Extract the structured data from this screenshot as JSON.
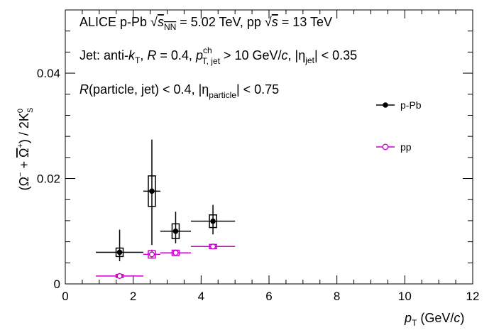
{
  "chart_data": {
    "type": "scatter",
    "xlabel": {
      "main": "p",
      "sub": "T",
      "rest": " (GeV/",
      "italic": "c",
      "close": ")"
    },
    "ylabel": "(Ω⁻ + Ω̄⁺) / 2K⁰S",
    "xlim": [
      0,
      12
    ],
    "ylim": [
      0,
      0.052
    ],
    "x_ticks": [
      0,
      2,
      4,
      6,
      8,
      10,
      12
    ],
    "x_tick_labels": [
      "0",
      "2",
      "4",
      "6",
      "8",
      "10",
      "12"
    ],
    "y_ticks": [
      0,
      0.02,
      0.04
    ],
    "y_tick_labels": [
      "0",
      "0.02",
      "0.04"
    ],
    "grid": false,
    "legend_position": "right",
    "annotations": {
      "line1": "ALICE p-Pb √sNN = 5.02 TeV, pp √s = 13 TeV",
      "line2": "Jet: anti-kT, R = 0.4, pch T, jet > 10 GeV/c, |ηjet| < 0.35",
      "line3": "R(particle, jet) < 0.4, |ηparticle| < 0.75"
    },
    "series": [
      {
        "name": "p-Pb",
        "color": "#000000",
        "marker": "filled-circle",
        "points": [
          {
            "x": 1.6,
            "y": 0.006,
            "xlo": 0.9,
            "xhi": 2.3,
            "stat": [
              0.0017,
              0.0043
            ],
            "sys": 0.0008
          },
          {
            "x": 2.55,
            "y": 0.0176,
            "xlo": 2.3,
            "xhi": 2.8,
            "stat": [
              0.0102,
              0.0098
            ],
            "sys": 0.0029
          },
          {
            "x": 3.25,
            "y": 0.01,
            "xlo": 2.8,
            "xhi": 3.7,
            "stat": [
              0.0023,
              0.0037
            ],
            "sys": 0.0014
          },
          {
            "x": 4.35,
            "y": 0.0119,
            "xlo": 3.7,
            "xhi": 5.0,
            "stat": [
              0.0025,
              0.0031
            ],
            "sys": 0.0012
          }
        ]
      },
      {
        "name": "pp",
        "color": "#cc00cc",
        "marker": "open-circle",
        "points": [
          {
            "x": 1.6,
            "y": 0.0015,
            "xlo": 0.9,
            "xhi": 2.3,
            "stat": [
              0.0003,
              0.0003
            ],
            "sys": 0.0003
          },
          {
            "x": 2.55,
            "y": 0.0056,
            "xlo": 2.3,
            "xhi": 2.8,
            "stat": [
              0.0008,
              0.0009
            ],
            "sys": 0.0007
          },
          {
            "x": 3.25,
            "y": 0.0059,
            "xlo": 2.8,
            "xhi": 3.7,
            "stat": [
              0.0006,
              0.0006
            ],
            "sys": 0.0005
          },
          {
            "x": 4.35,
            "y": 0.0071,
            "xlo": 3.7,
            "xhi": 5.0,
            "stat": [
              0.0005,
              0.0005
            ],
            "sys": 0.0004
          }
        ]
      }
    ]
  }
}
